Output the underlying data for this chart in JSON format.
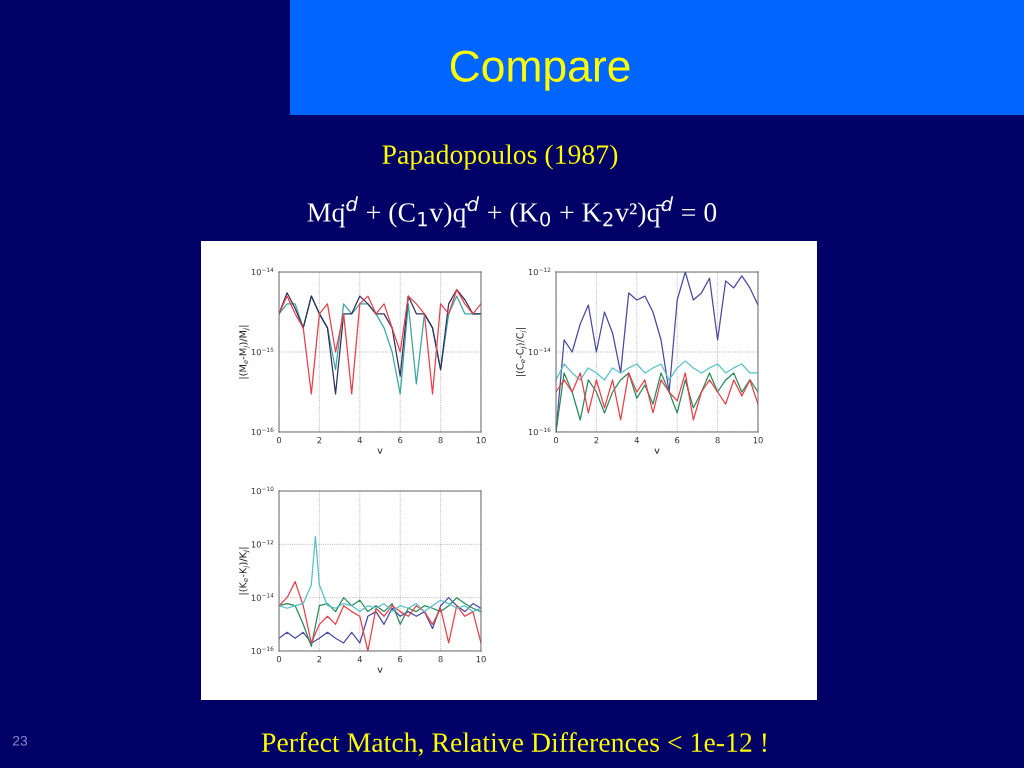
{
  "chart_data": [
    {
      "type": "line",
      "title": "Compare",
      "subtitle": "Papadopoulos (1987)",
      "annotations": [
        "Mq̈$^{d}$ + (C$_{1}$v)q̇$^{d}$ + (K$_{0}$ + K$_{2}$v²)q̄$^{d}$ = 0",
        "Perfect Match, Relative Differences < 1e-12 !",
        "23"
      ],
      "xlabel": "v",
      "ylabel": "|(M$_{e}$-M$_{j}$)/M$_{j}$|",
      "log": "y",
      "grid": true,
      "line_style": "solid",
      "x": [
        0,
        0.4,
        0.8,
        1.2,
        1.6,
        2.0,
        2.4,
        2.8,
        3.2,
        3.6,
        4.0,
        4.4,
        4.8,
        5.2,
        5.6,
        6.0,
        6.4,
        6.8,
        7.2,
        7.6,
        8.0,
        8.4,
        8.8,
        9.2,
        9.6,
        10
      ],
      "xlim": [
        0,
        10
      ],
      "xticks": [
        0,
        2,
        4,
        6,
        8,
        10
      ],
      "ylim": [
        1e-16,
        1e-14
      ],
      "yticks": [
        {
          "value": 1e-16,
          "label": "10$^{−16}$"
        },
        {
          "value": 1e-15,
          "label": "10$^{−15}$"
        },
        {
          "value": 1e-14,
          "label": "10$^{−14}$"
        }
      ],
      "series": [
        {
          "color": "#3aa6a0",
          "values": [
            3e-15,
            4e-15,
            4e-15,
            2e-15,
            5e-15,
            3e-15,
            2e-15,
            6e-16,
            4e-15,
            3e-15,
            4e-15,
            4e-15,
            3e-15,
            2e-15,
            1e-15,
            3e-16,
            4e-15,
            4e-16,
            3e-15,
            2e-15,
            6e-16,
            3e-15,
            5e-15,
            3e-15,
            3e-15,
            3e-15
          ]
        },
        {
          "color": "#303060",
          "values": [
            3e-15,
            5.5e-15,
            3.5e-15,
            2e-15,
            5e-15,
            3e-15,
            2e-15,
            3e-16,
            3e-15,
            3e-15,
            5e-15,
            4e-15,
            3e-15,
            3e-15,
            2e-15,
            5e-16,
            5e-15,
            3e-15,
            3e-15,
            2e-15,
            6e-16,
            4e-15,
            6e-15,
            4.5e-15,
            3e-15,
            3e-15
          ]
        },
        {
          "color": "#e8404a",
          "values": [
            3e-15,
            5e-15,
            3e-15,
            2e-15,
            3e-16,
            3e-15,
            4e-15,
            1e-15,
            3e-15,
            3e-16,
            4e-15,
            5e-15,
            3e-15,
            4e-15,
            2e-15,
            1e-15,
            5e-15,
            4e-15,
            3e-15,
            3e-16,
            4e-15,
            3e-15,
            6e-15,
            4e-15,
            3e-15,
            4e-15
          ]
        }
      ]
    },
    {
      "type": "line",
      "xlabel": "v",
      "ylabel": "|(C$_{e}$-C$_{j}$)/C$_{j}$|",
      "log": "y",
      "grid": true,
      "line_style": "solid",
      "x": [
        0,
        0.4,
        0.8,
        1.2,
        1.6,
        2.0,
        2.4,
        2.8,
        3.2,
        3.6,
        4.0,
        4.4,
        4.8,
        5.2,
        5.6,
        6.0,
        6.4,
        6.8,
        7.2,
        7.6,
        8.0,
        8.4,
        8.8,
        9.2,
        9.6,
        10
      ],
      "xlim": [
        0,
        10
      ],
      "xticks": [
        0,
        2,
        4,
        6,
        8,
        10
      ],
      "ylim": [
        1e-16,
        1e-12
      ],
      "yticks": [
        {
          "value": 1e-16,
          "label": "10$^{−16}$"
        },
        {
          "value": 1e-14,
          "label": "10$^{−14}$"
        },
        {
          "value": 1e-12,
          "label": "10$^{−12}$"
        }
      ],
      "series": [
        {
          "color": "#4a4aa0",
          "values": [
            1e-16,
            2e-14,
            1e-14,
            5e-14,
            1.5e-13,
            1e-14,
            1e-13,
            3e-14,
            3e-15,
            3e-13,
            2e-13,
            2.5e-13,
            1e-13,
            2e-14,
            1e-15,
            2e-13,
            1e-12,
            2e-13,
            3e-13,
            7e-13,
            2e-14,
            6e-13,
            4e-13,
            8e-13,
            4e-13,
            1.5e-13
          ]
        },
        {
          "color": "#58c0c8",
          "values": [
            2e-15,
            5e-15,
            3e-15,
            2e-15,
            4e-15,
            3e-15,
            2e-15,
            4e-15,
            3e-15,
            4e-15,
            5e-15,
            3e-15,
            4e-15,
            5e-15,
            2e-15,
            4e-15,
            6e-15,
            4e-15,
            3e-15,
            4e-15,
            5e-15,
            3e-15,
            4e-15,
            5e-15,
            3e-15,
            3e-15
          ]
        },
        {
          "color": "#2a8a5a",
          "values": [
            1e-16,
            3e-15,
            1e-15,
            2e-16,
            2e-15,
            1e-15,
            3e-16,
            1e-15,
            2e-15,
            3e-15,
            7e-16,
            1.5e-15,
            5e-16,
            3e-15,
            1e-15,
            3e-16,
            2e-15,
            4e-16,
            1e-15,
            3e-15,
            1e-15,
            2e-15,
            3e-15,
            1e-15,
            2e-15,
            1e-15
          ]
        },
        {
          "color": "#e8404a",
          "values": [
            1e-15,
            2e-15,
            1e-15,
            3e-15,
            3e-16,
            2e-15,
            4e-16,
            2e-15,
            2e-16,
            3e-15,
            1e-15,
            2e-15,
            3e-16,
            2e-15,
            1e-15,
            6e-16,
            3e-15,
            2e-16,
            1e-15,
            2e-15,
            1e-15,
            5e-16,
            2e-15,
            8e-16,
            2e-15,
            5e-16
          ]
        }
      ]
    },
    {
      "type": "line",
      "xlabel": "v",
      "ylabel": "|(K$_{e}$-K$_{j}$)/K$_{j}$|",
      "log": "y",
      "grid": true,
      "line_style": "solid",
      "x": [
        0,
        0.4,
        0.8,
        1.2,
        1.6,
        2.0,
        2.4,
        2.8,
        3.2,
        3.6,
        4.0,
        4.4,
        4.8,
        5.2,
        5.6,
        6.0,
        6.4,
        6.8,
        7.2,
        7.6,
        8.0,
        8.4,
        8.8,
        9.2,
        9.6,
        10
      ],
      "xlim": [
        0,
        10
      ],
      "xticks": [
        0,
        2,
        4,
        6,
        8,
        10
      ],
      "ylim": [
        1e-16,
        1e-10
      ],
      "yticks": [
        {
          "value": 1e-16,
          "label": "10$^{−16}$"
        },
        {
          "value": 1e-14,
          "label": "10$^{−14}$"
        },
        {
          "value": 1e-12,
          "label": "10$^{−12}$"
        },
        {
          "value": 1e-10,
          "label": "10$^{−10}$"
        }
      ],
      "series": [
        {
          "color": "#4a4aa0",
          "values": [
            3e-16,
            5e-16,
            3e-16,
            5e-16,
            2e-16,
            3e-16,
            5e-16,
            3e-16,
            2e-16,
            5e-16,
            2e-16,
            2e-15,
            3e-15,
            1e-15,
            4e-15,
            2e-15,
            3e-15,
            2e-15,
            3e-15,
            7e-16,
            5e-15,
            1e-14,
            5e-15,
            3e-15,
            6e-15,
            4e-15
          ]
        },
        {
          "color": "#2a8a5a",
          "values": [
            5e-15,
            6e-15,
            5e-15,
            1e-15,
            1.5e-16,
            5e-15,
            6e-15,
            3e-15,
            1e-14,
            5e-15,
            8e-15,
            3e-15,
            5e-15,
            3e-15,
            6e-15,
            1e-15,
            4e-15,
            3e-15,
            5e-15,
            4e-15,
            3e-15,
            5e-15,
            1e-14,
            6e-15,
            4e-15,
            3e-15
          ]
        },
        {
          "color": "#e8404a",
          "values": [
            5e-15,
            1e-14,
            4e-14,
            5e-15,
            2e-16,
            1e-15,
            2e-15,
            1e-15,
            5e-15,
            3e-15,
            2e-15,
            1e-16,
            4e-15,
            2e-15,
            5e-15,
            3e-15,
            2e-15,
            5e-15,
            3e-15,
            1e-15,
            4e-15,
            2e-16,
            5e-15,
            2e-15,
            3e-15,
            2e-16
          ]
        },
        {
          "color": "#58c0c8",
          "x": [
            0,
            0.4,
            0.8,
            1.2,
            1.6,
            1.8,
            2.0,
            2.4,
            2.8,
            3.2,
            3.6,
            4.0,
            4.4,
            4.8,
            5.2,
            5.6,
            6.0,
            6.4,
            6.8,
            7.2,
            7.6,
            8.0,
            8.4,
            8.8,
            9.2,
            9.6,
            10
          ],
          "values": [
            5e-15,
            4e-15,
            5e-15,
            6e-15,
            3e-14,
            2e-12,
            3e-14,
            5e-15,
            4e-15,
            6e-15,
            5e-15,
            3e-15,
            5e-15,
            4e-15,
            6e-15,
            3e-15,
            5e-15,
            4e-15,
            6e-15,
            3e-15,
            5e-15,
            8e-15,
            6e-15,
            4e-15,
            5e-15,
            3e-15,
            4e-15
          ]
        }
      ]
    }
  ]
}
